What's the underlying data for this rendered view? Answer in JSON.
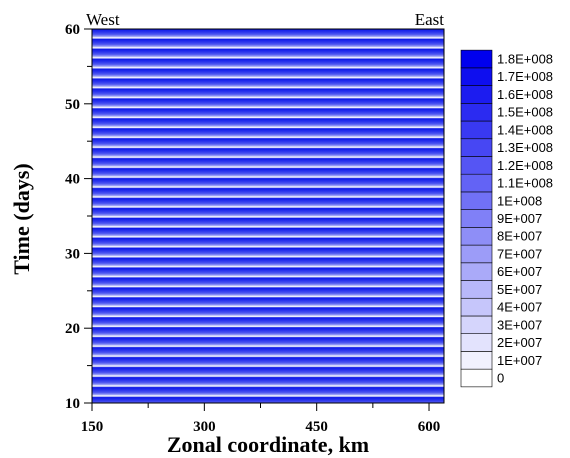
{
  "chart_data": {
    "type": "heatmap",
    "xlabel": "Zonal coordinate, km",
    "ylabel": "Time (days)",
    "xlim": [
      150,
      620
    ],
    "ylim": [
      10,
      60
    ],
    "x_ticks": [
      "150",
      "300",
      "450",
      "600"
    ],
    "y_ticks": [
      "10",
      "20",
      "30",
      "40",
      "50",
      "60"
    ],
    "corner_left": "West",
    "corner_right": "East",
    "band_period_days": 1.0,
    "legend": {
      "levels": [
        "0",
        "1E+007",
        "2E+007",
        "3E+007",
        "4E+007",
        "5E+007",
        "6E+007",
        "7E+007",
        "8E+007",
        "9E+007",
        "1E+008",
        "1.1E+008",
        "1.2E+008",
        "1.3E+008",
        "1.4E+008",
        "1.5E+008",
        "1.6E+008",
        "1.7E+008",
        "1.8E+008"
      ],
      "values": [
        0,
        10000000,
        20000000,
        30000000,
        40000000,
        50000000,
        60000000,
        70000000,
        80000000,
        90000000,
        100000000,
        110000000,
        120000000,
        130000000,
        140000000,
        150000000,
        160000000,
        170000000,
        180000000
      ],
      "color_low": "#ffffff",
      "color_high": "#0000ee"
    }
  }
}
